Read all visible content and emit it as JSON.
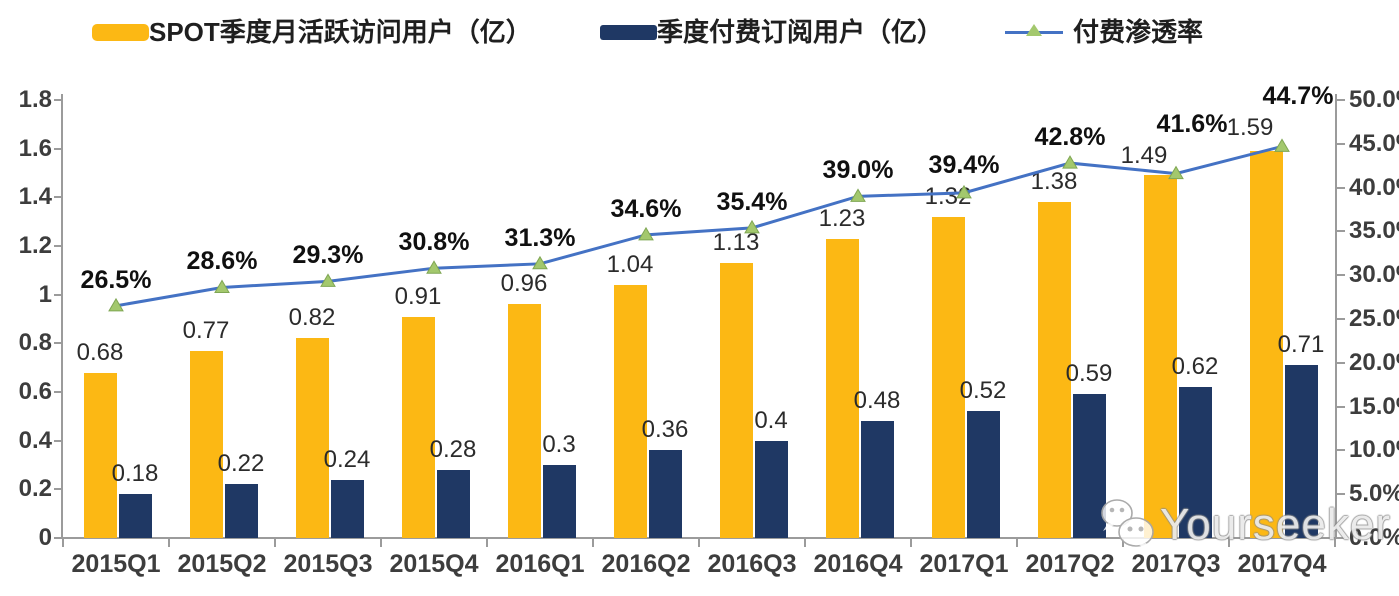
{
  "legend": [
    {
      "label": "SPOT季度月活跃访问用户（亿）",
      "color": "#FCB814",
      "type": "bar"
    },
    {
      "label": "季度付费订阅用户（亿）",
      "color": "#1F3864",
      "type": "bar"
    },
    {
      "label": "付费渗透率",
      "color": "#4472C4",
      "marker_color": "#A3C86D",
      "type": "line"
    }
  ],
  "chart_data": {
    "type": "bar",
    "subtype": "grouped bars + line on secondary axis",
    "title": "",
    "categories": [
      "2015Q1",
      "2015Q2",
      "2015Q3",
      "2015Q4",
      "2016Q1",
      "2016Q2",
      "2016Q3",
      "2016Q4",
      "2017Q1",
      "2017Q2",
      "2017Q3",
      "2017Q4"
    ],
    "series": [
      {
        "name": "SPOT季度月活跃访问用户（亿）",
        "type": "bar",
        "axis": "left",
        "color": "#FCB814",
        "values": [
          0.68,
          0.77,
          0.82,
          0.91,
          0.96,
          1.04,
          1.13,
          1.23,
          1.32,
          1.38,
          1.49,
          1.59
        ],
        "labels": [
          "0.68",
          "0.77",
          "0.82",
          "0.91",
          "0.96",
          "1.04",
          "1.13",
          "1.23",
          "1.32",
          "1.38",
          "1.49",
          "1.59"
        ]
      },
      {
        "name": "季度付费订阅用户（亿）",
        "type": "bar",
        "axis": "left",
        "color": "#1F3864",
        "values": [
          0.18,
          0.22,
          0.24,
          0.28,
          0.3,
          0.36,
          0.4,
          0.48,
          0.52,
          0.59,
          0.62,
          0.71
        ],
        "labels": [
          "0.18",
          "0.22",
          "0.24",
          "0.28",
          "0.3",
          "0.36",
          "0.4",
          "0.48",
          "0.52",
          "0.59",
          "0.62",
          "0.71"
        ]
      },
      {
        "name": "付费渗透率",
        "type": "line",
        "axis": "right",
        "color": "#4472C4",
        "marker": "triangle-up",
        "marker_color": "#A3C86D",
        "marker_edge": "#7FA653",
        "values": [
          26.5,
          28.6,
          29.3,
          30.8,
          31.3,
          34.6,
          35.4,
          39.0,
          39.4,
          42.8,
          41.6,
          44.7
        ],
        "labels": [
          "26.5%",
          "28.6%",
          "29.3%",
          "30.8%",
          "31.3%",
          "34.6%",
          "35.4%",
          "39.0%",
          "39.4%",
          "42.8%",
          "41.6%",
          "44.7%"
        ]
      }
    ],
    "left_axis": {
      "min": 0,
      "max": 1.8,
      "ticks": [
        "1.8",
        "1.6",
        "1.4",
        "1.2",
        "1",
        "0.8",
        "0.6",
        "0.4",
        "0.2",
        "0"
      ]
    },
    "right_axis": {
      "min": 0,
      "max": 50,
      "ticks": [
        "50.0%",
        "45.0%",
        "40.0%",
        "35.0%",
        "30.0%",
        "25.0%",
        "20.0%",
        "15.0%",
        "10.0%",
        "5.0%",
        "0.0%"
      ]
    },
    "grid": false,
    "legend_position": "top"
  },
  "watermark": {
    "text": "Yourseeker",
    "icon": "wechat-icon"
  }
}
